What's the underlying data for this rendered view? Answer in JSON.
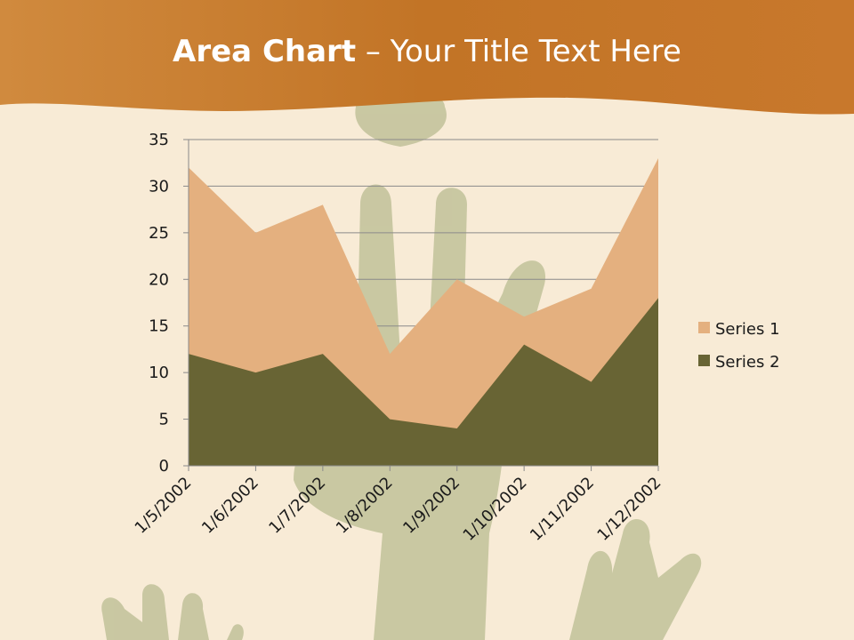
{
  "slide": {
    "title_bold": "Area Chart",
    "title_rest": " – Your Title Text Here"
  },
  "colors": {
    "header": "#c8772a",
    "background": "#f8ebd6",
    "series1": "#e4b07f",
    "series2": "#686434",
    "hands": "#9aa36f"
  },
  "chart_data": {
    "type": "area",
    "x": [
      "1/5/2002",
      "1/6/2002",
      "1/7/2002",
      "1/8/2002",
      "1/9/2002",
      "1/10/2002",
      "1/11/2002",
      "1/12/2002"
    ],
    "series": [
      {
        "name": "Series 1",
        "values": [
          32,
          25,
          28,
          12,
          20,
          16,
          19,
          33
        ]
      },
      {
        "name": "Series 2",
        "values": [
          12,
          10,
          12,
          5,
          4,
          13,
          9,
          18
        ]
      }
    ],
    "ylim": [
      0,
      35
    ],
    "yticks": [
      0,
      5,
      10,
      15,
      20,
      25,
      30,
      35
    ],
    "grid": true,
    "legend_position": "right"
  }
}
